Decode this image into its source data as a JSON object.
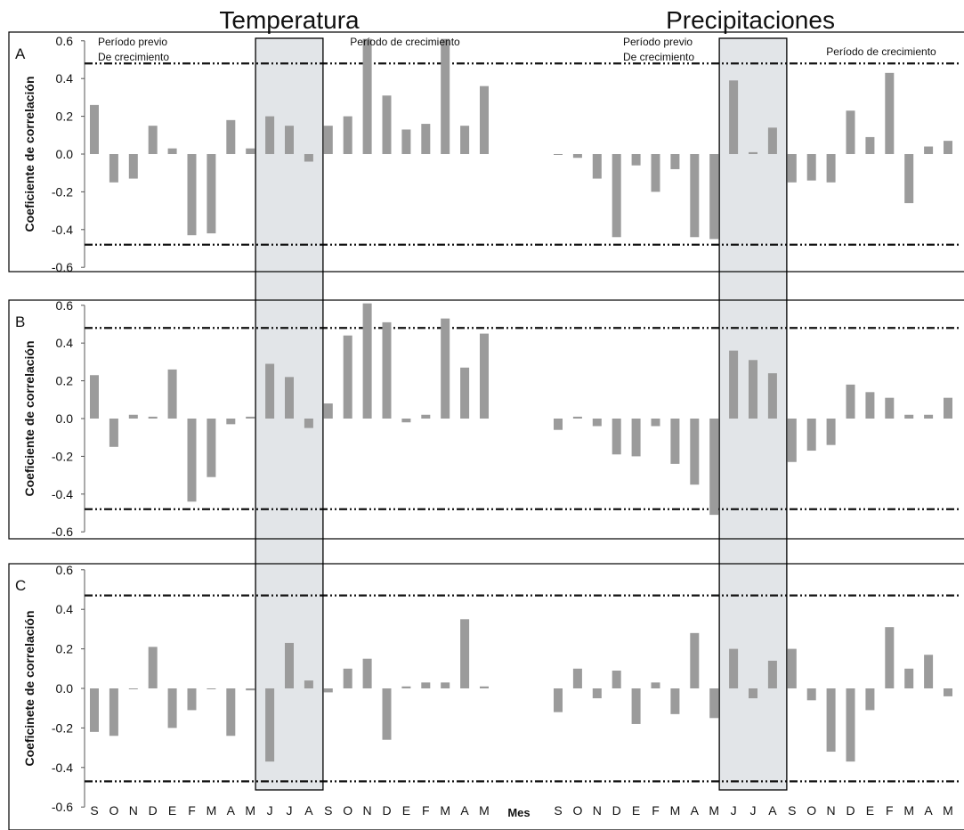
{
  "group_titles": [
    "Temperatura",
    "Precipitaciones"
  ],
  "chart_data": [
    {
      "type": "bar",
      "panel": "A",
      "ylabel": "Coeficiente de correlación",
      "ylim": [
        -0.6,
        0.6
      ],
      "yticks": [
        "0.6",
        "0.4",
        "0.2",
        "0.0",
        "-0.2",
        "-0.4",
        "-0.6"
      ],
      "threshold": 0.48,
      "period_labels": {
        "temp_pre": [
          "Período previo",
          "De crecimiento"
        ],
        "temp_grow": "Período de crecimiento",
        "prec_pre": [
          "Período previo",
          "De crecimiento"
        ],
        "prec_grow": "Período de crecimiento"
      },
      "series": [
        {
          "name": "Temperatura",
          "values": [
            0.26,
            -0.15,
            -0.13,
            0.15,
            0.03,
            -0.43,
            -0.42,
            0.18,
            0.03,
            0.2,
            0.15,
            -0.04,
            0.15,
            0.2,
            0.61,
            0.31,
            0.13,
            0.16,
            0.61,
            0.15,
            0.36
          ]
        },
        {
          "name": "Precipitaciones",
          "values": [
            0.0,
            -0.02,
            -0.13,
            -0.44,
            -0.06,
            -0.2,
            -0.08,
            -0.44,
            -0.45,
            0.39,
            0.01,
            0.14,
            -0.15,
            -0.14,
            -0.15,
            0.23,
            0.09,
            0.43,
            -0.26,
            0.04,
            0.07
          ]
        }
      ]
    },
    {
      "type": "bar",
      "panel": "B",
      "ylabel": "Coeficiente de correlación",
      "ylim": [
        -0.6,
        0.6
      ],
      "yticks": [
        "0.6",
        "0.4",
        "0.2",
        "0.0",
        "-0.2",
        "-0.4",
        "-0.6"
      ],
      "threshold": 0.48,
      "series": [
        {
          "name": "Temperatura",
          "values": [
            0.23,
            -0.15,
            0.02,
            0.01,
            0.26,
            -0.44,
            -0.31,
            -0.03,
            0.01,
            0.29,
            0.22,
            -0.05,
            0.08,
            0.44,
            0.61,
            0.51,
            -0.02,
            0.02,
            0.53,
            0.27,
            0.45
          ]
        },
        {
          "name": "Precipitaciones",
          "values": [
            -0.06,
            0.01,
            -0.04,
            -0.19,
            -0.2,
            -0.04,
            -0.24,
            -0.35,
            -0.51,
            0.36,
            0.31,
            0.24,
            -0.23,
            -0.17,
            -0.14,
            0.18,
            0.14,
            0.11,
            0.02,
            0.02,
            0.11
          ]
        }
      ]
    },
    {
      "type": "bar",
      "panel": "C",
      "ylabel": "Coeficinete de correlación",
      "ylim": [
        -0.6,
        0.6
      ],
      "yticks": [
        "0.6",
        "0.4",
        "0.2",
        "0.0",
        "-0.2",
        "-0.4",
        "-0.6"
      ],
      "threshold": 0.47,
      "series": [
        {
          "name": "Temperatura",
          "values": [
            -0.22,
            -0.24,
            0.0,
            0.21,
            -0.2,
            -0.11,
            0.0,
            -0.24,
            -0.01,
            -0.37,
            0.23,
            0.04,
            -0.02,
            0.1,
            0.15,
            -0.26,
            0.01,
            0.03,
            0.03,
            0.35,
            0.01
          ]
        },
        {
          "name": "Precipitaciones",
          "values": [
            -0.12,
            0.1,
            -0.05,
            0.09,
            -0.18,
            0.03,
            -0.13,
            0.28,
            -0.15,
            0.2,
            -0.05,
            0.14,
            0.2,
            -0.06,
            -0.32,
            -0.37,
            -0.11,
            0.31,
            0.1,
            0.17,
            -0.04
          ]
        }
      ]
    }
  ],
  "x_labels": [
    "S",
    "O",
    "N",
    "D",
    "E",
    "F",
    "M",
    "A",
    "M",
    "J",
    "J",
    "A",
    "S",
    "O",
    "N",
    "D",
    "E",
    "F",
    "M",
    "A",
    "M"
  ],
  "x_axis_label": "Mes",
  "colors": {
    "bar": "#9b9b9b",
    "highlight": "#e2e5e8",
    "border": "#000000"
  }
}
